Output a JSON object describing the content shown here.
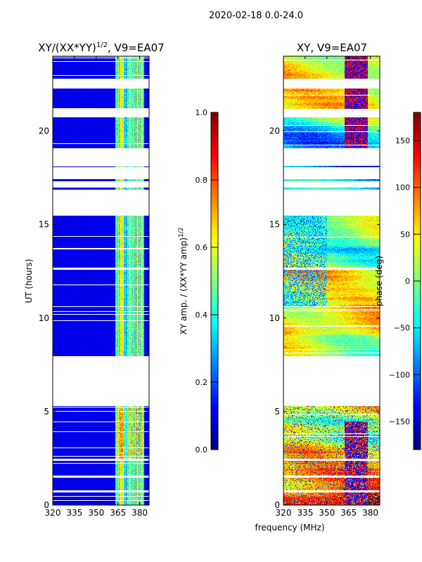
{
  "chart_data": {
    "type": "heatmap",
    "suptitle": "2020-02-18 0.0-24.0",
    "xlabel": "frequency (MHz)",
    "panels": [
      {
        "title_main": "XY/(XX*YY)",
        "title_sup": "1/2",
        "title_rest": ", V9=EA07",
        "ylabel": "UT (hours)",
        "xlim": [
          320,
          386.5
        ],
        "ylim": [
          0,
          24
        ],
        "xticks": [
          320,
          335,
          350,
          365,
          380
        ],
        "yticks": [
          0,
          5,
          10,
          15,
          20
        ],
        "colorbar": {
          "label_main": "XY amp. / (XX*YY amp)",
          "label_sup": "1/2",
          "range": [
            0,
            1
          ],
          "ticks": [
            "0.0",
            "0.2",
            "0.4",
            "0.6",
            "0.8",
            "1.0"
          ],
          "tick_values": [
            0,
            0.2,
            0.4,
            0.6,
            0.8,
            1.0
          ],
          "cmap": "jet"
        },
        "quantity": "amplitude"
      },
      {
        "title_main": "XY, V9=EA07",
        "title_sup": "",
        "title_rest": "",
        "ylabel": "",
        "xlim": [
          320,
          386.5
        ],
        "ylim": [
          0,
          24
        ],
        "xticks": [
          320,
          335,
          350,
          365,
          380
        ],
        "yticks": [
          0,
          5,
          10,
          15,
          20
        ],
        "colorbar": {
          "label_main": "phase (deg)",
          "label_sup": "",
          "range": [
            -180,
            180
          ],
          "ticks": [
            "−150",
            "−100",
            "−50",
            "0",
            "50",
            "100",
            "150"
          ],
          "tick_values": [
            -150,
            -100,
            -50,
            0,
            50,
            100,
            150
          ],
          "cmap": "jet"
        },
        "quantity": "phase"
      }
    ],
    "data_time_blocks_hours": [
      [
        0.0,
        0.7
      ],
      [
        0.8,
        1.5
      ],
      [
        1.6,
        2.4
      ],
      [
        2.5,
        5.3
      ],
      [
        8.0,
        10.6
      ],
      [
        10.65,
        12.6
      ],
      [
        12.7,
        15.5
      ],
      [
        16.9,
        17.0
      ],
      [
        17.35,
        17.45
      ],
      [
        18.1,
        18.15
      ],
      [
        19.1,
        20.75
      ],
      [
        21.2,
        22.3
      ],
      [
        22.8,
        24.0
      ]
    ],
    "bright_amp_band_MHz": [
      363,
      383
    ]
  }
}
